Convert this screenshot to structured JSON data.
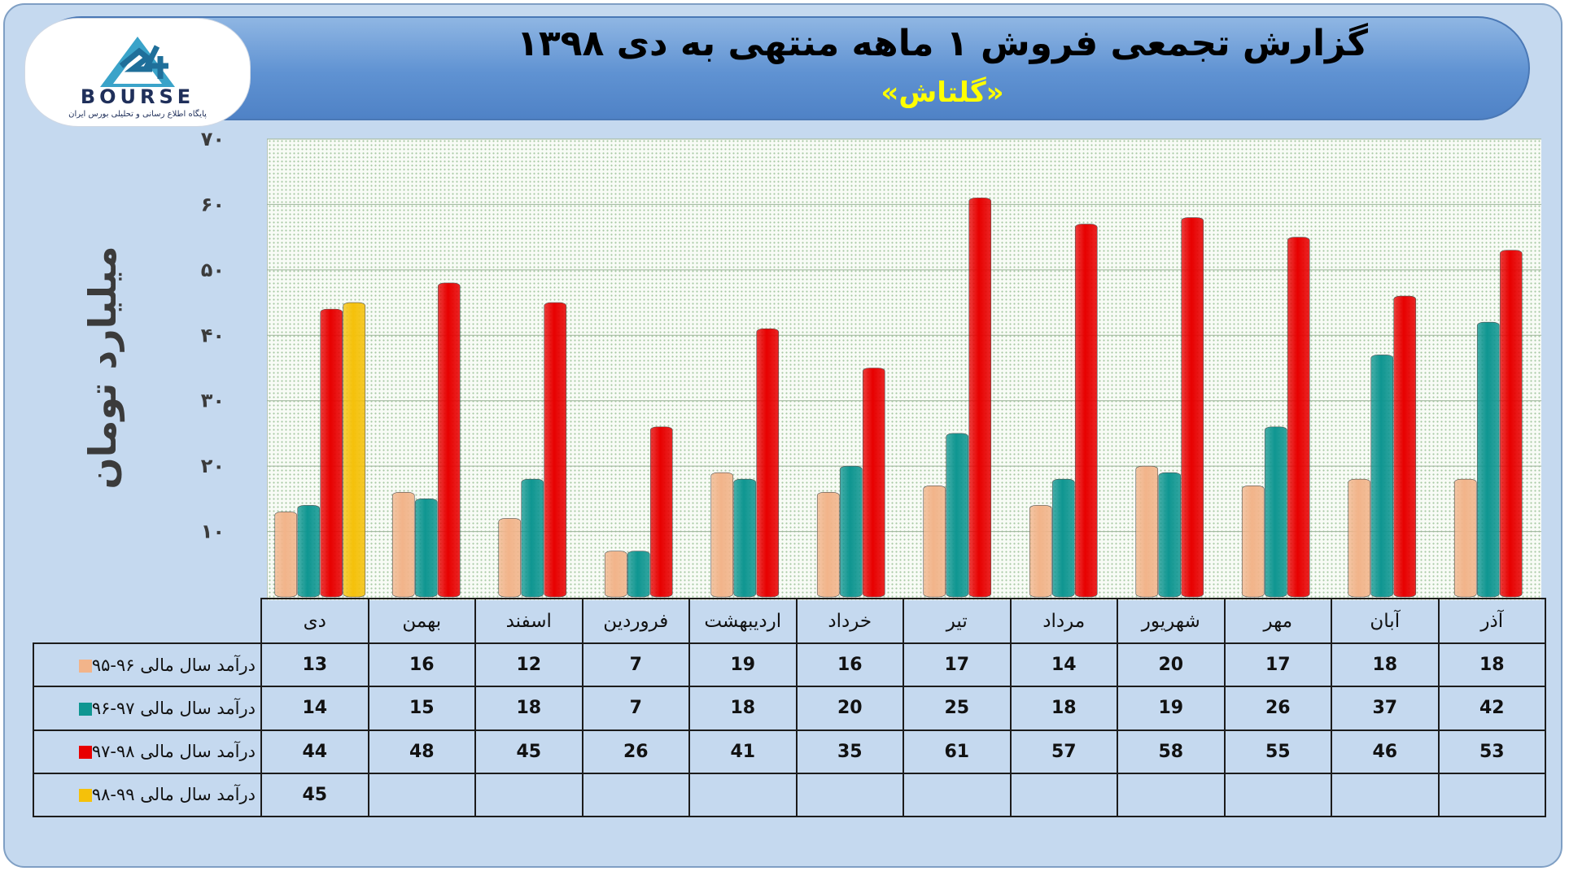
{
  "header": {
    "title": "گزارش تجمعی فروش ۱ ماهه منتهی به دی ۱۳۹۸",
    "subtitle": "«گلتاش»"
  },
  "logo": {
    "wordmark": "BOURSE",
    "tagline": "پایگاه اطلاع رسانی و تحلیلی بورس ایران",
    "icon": "bourse-24-logo-icon"
  },
  "colors": {
    "series_95_96": "#f2b48a",
    "series_96_97": "#0f9691",
    "series_97_98": "#e80000",
    "series_98_99": "#f5c10a",
    "header_bg": "#5f92d2",
    "frame_bg": "#c5d9ef"
  },
  "chart_data": {
    "type": "bar",
    "ylabel": "میلیارد تومان",
    "ylim": [
      0,
      70
    ],
    "ytick_values": [
      10,
      20,
      30,
      40,
      50,
      60,
      70
    ],
    "ytick_labels": [
      "۱۰",
      "۲۰",
      "۳۰",
      "۴۰",
      "۵۰",
      "۶۰",
      "۷۰"
    ],
    "grid": true,
    "categories": [
      "دی",
      "بهمن",
      "اسفند",
      "فروردین",
      "اردیبهشت",
      "خرداد",
      "تیر",
      "مرداد",
      "شهریور",
      "مهر",
      "آبان",
      "آذر"
    ],
    "series": [
      {
        "name": "درآمد سال مالی ۹۶-۹۵",
        "color": "#f2b48a",
        "values": [
          13,
          16,
          12,
          7,
          19,
          16,
          17,
          14,
          20,
          17,
          18,
          18
        ]
      },
      {
        "name": "درآمد سال مالی ۹۷-۹۶",
        "color": "#0f9691",
        "values": [
          14,
          15,
          18,
          7,
          18,
          20,
          25,
          18,
          19,
          26,
          37,
          42
        ]
      },
      {
        "name": "درآمد سال مالی ۹۸-۹۷",
        "color": "#e80000",
        "values": [
          44,
          48,
          45,
          26,
          41,
          35,
          61,
          57,
          58,
          55,
          46,
          53
        ]
      },
      {
        "name": "درآمد سال مالی ۹۹-۹۸",
        "color": "#f5c10a",
        "values": [
          45,
          null,
          null,
          null,
          null,
          null,
          null,
          null,
          null,
          null,
          null,
          null
        ]
      }
    ]
  }
}
